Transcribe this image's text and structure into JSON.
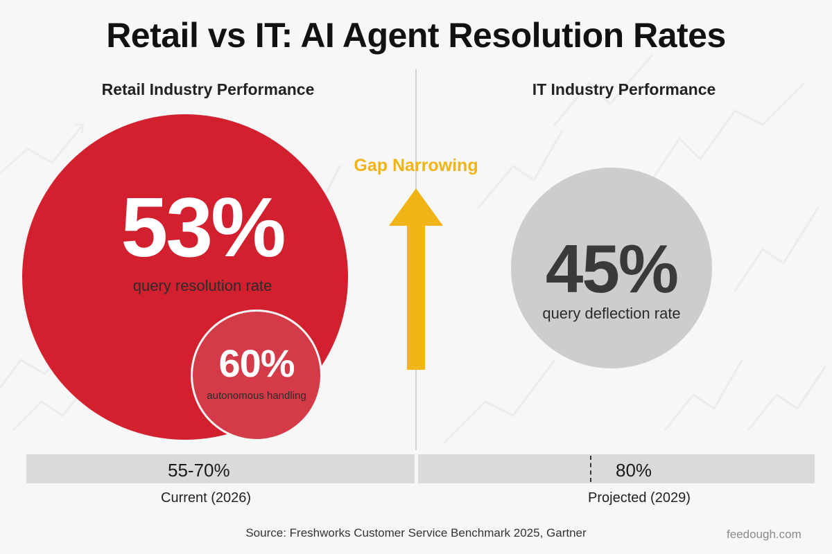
{
  "title": "Retail vs IT: AI Agent Resolution Rates",
  "chart_data": {
    "type": "infographic",
    "panels": [
      {
        "title": "Retail Industry Performance",
        "metrics": [
          {
            "value": 53,
            "display": "53%",
            "label": "query resolution rate"
          },
          {
            "value": 60,
            "display": "60%",
            "label": "autonomous handling"
          }
        ],
        "color": "#d3202f"
      },
      {
        "title": "IT Industry Performance",
        "metrics": [
          {
            "value": 45,
            "display": "45%",
            "label": "query deflection rate"
          }
        ],
        "color": "#cdcdcd"
      }
    ],
    "gap_label": "Gap Narrowing",
    "gap_color": "#f0b416",
    "ranges": [
      {
        "display": "55-70%",
        "low": 55,
        "high": 70,
        "period": "Current (2026)"
      },
      {
        "display": "80%",
        "value": 80,
        "period": "Projected (2029)"
      }
    ]
  },
  "source": "Source: Freshworks Customer Service Benchmark 2025, Gartner",
  "brand": "feedough.com"
}
